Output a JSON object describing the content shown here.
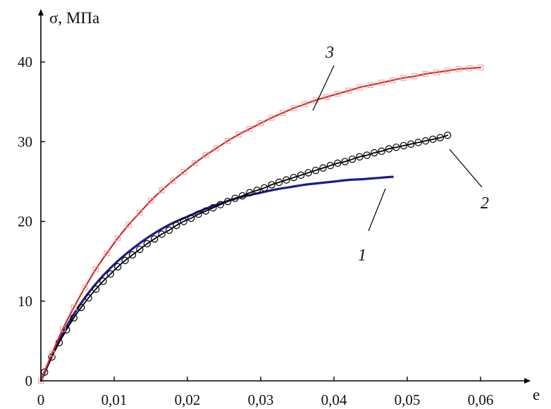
{
  "chart_data": {
    "type": "line",
    "title": "",
    "xlabel": "e",
    "ylabel": "σ, МПа",
    "xlim": [
      0,
      0.063
    ],
    "ylim": [
      0,
      45
    ],
    "grid": false,
    "legend": "none",
    "x_ticks": [
      {
        "value": 0,
        "label": "0"
      },
      {
        "value": 0.01,
        "label": "0,01"
      },
      {
        "value": 0.02,
        "label": "0,02"
      },
      {
        "value": 0.03,
        "label": "0,03"
      },
      {
        "value": 0.04,
        "label": "0,04"
      },
      {
        "value": 0.05,
        "label": "0,05"
      },
      {
        "value": 0.06,
        "label": "0,06"
      }
    ],
    "y_ticks": [
      {
        "value": 0,
        "label": "0"
      },
      {
        "value": 10,
        "label": "10"
      },
      {
        "value": 20,
        "label": "20"
      },
      {
        "value": 30,
        "label": "30"
      },
      {
        "value": 40,
        "label": "40"
      }
    ],
    "series": [
      {
        "name": "1",
        "color": "#1c1c8a",
        "marker": "none",
        "x": [
          0,
          0.002,
          0.004,
          0.006,
          0.008,
          0.01,
          0.012,
          0.014,
          0.016,
          0.018,
          0.02,
          0.022,
          0.024,
          0.026,
          0.028,
          0.03,
          0.032,
          0.034,
          0.036,
          0.038,
          0.04,
          0.042,
          0.044,
          0.046,
          0.048
        ],
        "y": [
          0,
          4.1,
          7.6,
          10.4,
          12.7,
          14.6,
          16.2,
          17.6,
          18.8,
          19.8,
          20.6,
          21.4,
          22.1,
          22.7,
          23.2,
          23.6,
          24,
          24.3,
          24.6,
          24.8,
          25,
          25.2,
          25.3,
          25.45,
          25.6
        ]
      },
      {
        "name": "2",
        "color": "#000000",
        "marker": "circle",
        "x": [
          0.0005,
          0.0015,
          0.0025,
          0.0035,
          0.0045,
          0.0055,
          0.0065,
          0.0075,
          0.0085,
          0.0095,
          0.0105,
          0.0115,
          0.0125,
          0.0135,
          0.0145,
          0.0155,
          0.0165,
          0.0175,
          0.0185,
          0.0195,
          0.0205,
          0.0215,
          0.0225,
          0.0235,
          0.0245,
          0.0255,
          0.0265,
          0.0275,
          0.0285,
          0.0295,
          0.0305,
          0.0315,
          0.0325,
          0.0335,
          0.0345,
          0.0355,
          0.0365,
          0.0375,
          0.0385,
          0.0395,
          0.0405,
          0.0415,
          0.0425,
          0.0435,
          0.0445,
          0.0455,
          0.0465,
          0.0475,
          0.0485,
          0.0495,
          0.0505,
          0.0515,
          0.0525,
          0.0535,
          0.0545,
          0.0555
        ],
        "y": [
          1.1,
          3,
          4.8,
          6.4,
          7.9,
          9.2,
          10.4,
          11.5,
          12.5,
          13.4,
          14.3,
          15.1,
          15.8,
          16.5,
          17.2,
          17.8,
          18.4,
          18.9,
          19.5,
          20,
          20.4,
          20.9,
          21.3,
          21.7,
          22.1,
          22.5,
          22.9,
          23.2,
          23.6,
          23.9,
          24.2,
          24.6,
          24.9,
          25.2,
          25.5,
          25.8,
          26.1,
          26.4,
          26.7,
          27,
          27.3,
          27.5,
          27.8,
          28.1,
          28.3,
          28.6,
          28.8,
          29.1,
          29.3,
          29.5,
          29.7,
          29.9,
          30.1,
          30.3,
          30.5,
          30.8
        ]
      },
      {
        "name": "3",
        "color": "#d42a2a",
        "marker": "square",
        "marker_color": "#e9a49e",
        "x": [
          0,
          0.0015,
          0.003,
          0.0045,
          0.006,
          0.0075,
          0.009,
          0.0105,
          0.012,
          0.0135,
          0.015,
          0.0165,
          0.018,
          0.0195,
          0.021,
          0.0225,
          0.024,
          0.0255,
          0.027,
          0.0285,
          0.03,
          0.0315,
          0.033,
          0.0345,
          0.036,
          0.0375,
          0.039,
          0.0405,
          0.042,
          0.0435,
          0.045,
          0.0465,
          0.048,
          0.0495,
          0.051,
          0.0525,
          0.054,
          0.0555,
          0.057,
          0.0585,
          0.06
        ],
        "y": [
          0,
          3.4,
          6.5,
          9.2,
          11.7,
          14,
          16,
          17.9,
          19.6,
          21.1,
          22.6,
          23.9,
          25.1,
          26.2,
          27.3,
          28.3,
          29.2,
          30.1,
          30.9,
          31.6,
          32.3,
          33,
          33.6,
          34.2,
          34.7,
          35.2,
          35.6,
          36,
          36.4,
          36.8,
          37.1,
          37.4,
          37.7,
          38,
          38.2,
          38.5,
          38.7,
          38.9,
          39.1,
          39.2,
          39.3
        ]
      }
    ],
    "annotations": [
      {
        "text": "1",
        "series": "1",
        "at_x": 0.0455
      },
      {
        "text": "2",
        "series": "2",
        "at_x": 0.0555
      },
      {
        "text": "3",
        "series": "3",
        "at_x": 0.0365
      }
    ]
  }
}
